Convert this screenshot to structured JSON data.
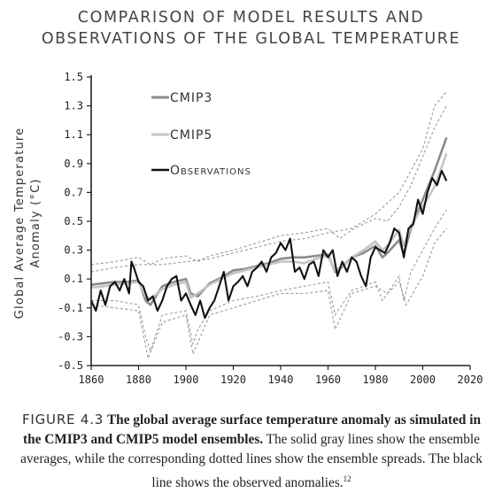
{
  "title_line1": "COMPARISON OF MODEL RESULTS AND",
  "title_line2": "OBSERVATIONS OF THE GLOBAL TEMPERATURE",
  "caption": {
    "figure_label": "FIGURE 4.3",
    "bold_text": "The global average surface temperature anomaly as simulated in the CMIP3 and CMIP5 model ensembles.",
    "text": "The solid gray lines show the ensemble averages, while the corresponding dotted lines show the ensemble spreads. The black line shows the observed anomalies.",
    "footnote": "12"
  },
  "colors": {
    "cmip3": "#8c8c8c",
    "cmip5": "#c4c4c4",
    "observations": "#111111",
    "spread": "#9a9a9a"
  },
  "chart_data": {
    "type": "line",
    "title": "COMPARISON OF MODEL RESULTS AND OBSERVATIONS OF THE GLOBAL TEMPERATURE",
    "ylabel_line1": "Global Average Temperature",
    "ylabel_line2": "Anomaly (°C)",
    "xlabel": "",
    "xlim": [
      1860,
      2020
    ],
    "ylim": [
      -0.5,
      1.5
    ],
    "x_ticks": [
      1860,
      1880,
      1900,
      1920,
      1940,
      1960,
      1980,
      2000,
      2020
    ],
    "y_ticks": [
      -0.5,
      -0.3,
      -0.1,
      0.1,
      0.3,
      0.5,
      0.7,
      0.9,
      1.1,
      1.3,
      1.5
    ],
    "y_tick_labels": [
      "-0.5",
      "-0.3",
      "-0.1",
      "0.1",
      "0.3",
      "0.5",
      "0.7",
      "0.9",
      "1.1",
      "1.3",
      "1.5"
    ],
    "legend_position": "top-left",
    "grid": false,
    "series": [
      {
        "name": "CMIP3",
        "style": "solid",
        "x": [
          1860,
          1865,
          1870,
          1875,
          1880,
          1883,
          1885,
          1890,
          1895,
          1900,
          1902,
          1905,
          1910,
          1915,
          1920,
          1925,
          1930,
          1935,
          1940,
          1945,
          1950,
          1955,
          1960,
          1963,
          1965,
          1970,
          1975,
          1980,
          1983,
          1985,
          1990,
          1992,
          1995,
          2000,
          2005,
          2010
        ],
        "y": [
          0.06,
          0.07,
          0.08,
          0.08,
          0.09,
          -0.05,
          -0.08,
          0.05,
          0.08,
          0.1,
          0.0,
          -0.02,
          0.07,
          0.11,
          0.16,
          0.17,
          0.19,
          0.21,
          0.24,
          0.25,
          0.25,
          0.26,
          0.27,
          0.15,
          0.17,
          0.25,
          0.28,
          0.33,
          0.25,
          0.28,
          0.37,
          0.27,
          0.45,
          0.65,
          0.85,
          1.08
        ]
      },
      {
        "name": "CMIP5",
        "style": "solid",
        "x": [
          1860,
          1865,
          1870,
          1875,
          1880,
          1883,
          1885,
          1890,
          1895,
          1900,
          1902,
          1905,
          1910,
          1915,
          1920,
          1925,
          1930,
          1935,
          1940,
          1945,
          1950,
          1955,
          1960,
          1963,
          1965,
          1970,
          1975,
          1980,
          1983,
          1985,
          1990,
          1992,
          1995,
          2000,
          2005,
          2010
        ],
        "y": [
          0.04,
          0.05,
          0.06,
          0.07,
          0.08,
          -0.02,
          -0.04,
          0.03,
          0.06,
          0.08,
          -0.03,
          0.0,
          0.06,
          0.1,
          0.14,
          0.16,
          0.18,
          0.2,
          0.22,
          0.22,
          0.21,
          0.24,
          0.26,
          0.16,
          0.18,
          0.25,
          0.3,
          0.36,
          0.3,
          0.33,
          0.44,
          0.33,
          0.47,
          0.6,
          0.74,
          0.97
        ]
      },
      {
        "name": "Observations",
        "style": "solid",
        "x": [
          1860,
          1862,
          1864,
          1866,
          1868,
          1870,
          1872,
          1874,
          1876,
          1877,
          1878,
          1880,
          1882,
          1884,
          1886,
          1888,
          1890,
          1892,
          1894,
          1896,
          1898,
          1900,
          1902,
          1904,
          1906,
          1908,
          1910,
          1912,
          1914,
          1916,
          1918,
          1920,
          1922,
          1924,
          1926,
          1928,
          1930,
          1932,
          1934,
          1936,
          1938,
          1940,
          1942,
          1944,
          1946,
          1948,
          1950,
          1952,
          1954,
          1956,
          1958,
          1960,
          1962,
          1964,
          1966,
          1968,
          1970,
          1972,
          1974,
          1976,
          1978,
          1980,
          1982,
          1984,
          1986,
          1988,
          1990,
          1992,
          1994,
          1996,
          1998,
          2000,
          2002,
          2004,
          2006,
          2008,
          2010
        ],
        "y": [
          -0.05,
          -0.12,
          0.02,
          -0.08,
          0.05,
          0.08,
          0.02,
          0.1,
          0.0,
          0.22,
          0.18,
          0.08,
          0.05,
          -0.05,
          -0.02,
          -0.12,
          -0.05,
          0.05,
          0.1,
          0.12,
          -0.05,
          0.0,
          -0.08,
          -0.15,
          -0.05,
          -0.17,
          -0.1,
          -0.05,
          0.05,
          0.15,
          -0.05,
          0.05,
          0.08,
          0.12,
          0.05,
          0.15,
          0.18,
          0.22,
          0.15,
          0.25,
          0.28,
          0.35,
          0.3,
          0.38,
          0.15,
          0.18,
          0.1,
          0.2,
          0.22,
          0.12,
          0.3,
          0.25,
          0.3,
          0.12,
          0.22,
          0.15,
          0.25,
          0.22,
          0.12,
          0.05,
          0.25,
          0.32,
          0.3,
          0.28,
          0.35,
          0.45,
          0.42,
          0.25,
          0.45,
          0.48,
          0.65,
          0.55,
          0.7,
          0.8,
          0.75,
          0.85,
          0.78
        ]
      },
      {
        "name": "CMIP3 spread (upper)",
        "style": "dotted",
        "x": [
          1860,
          1870,
          1880,
          1885,
          1890,
          1900,
          1905,
          1910,
          1920,
          1930,
          1940,
          1950,
          1960,
          1965,
          1970,
          1980,
          1985,
          1990,
          1995,
          2000,
          2005,
          2010
        ],
        "y": [
          0.2,
          0.22,
          0.25,
          0.2,
          0.24,
          0.26,
          0.22,
          0.26,
          0.3,
          0.35,
          0.4,
          0.42,
          0.45,
          0.38,
          0.44,
          0.52,
          0.5,
          0.6,
          0.75,
          0.95,
          1.15,
          1.3
        ]
      },
      {
        "name": "CMIP3 spread (lower)",
        "style": "dotted",
        "x": [
          1860,
          1870,
          1880,
          1883,
          1885,
          1890,
          1900,
          1903,
          1905,
          1910,
          1920,
          1930,
          1940,
          1950,
          1960,
          1963,
          1965,
          1970,
          1980,
          1983,
          1990,
          1992,
          1995,
          2000,
          2005,
          2010
        ],
        "y": [
          -0.05,
          -0.05,
          -0.08,
          -0.3,
          -0.4,
          -0.15,
          -0.12,
          -0.35,
          -0.25,
          -0.12,
          -0.05,
          -0.02,
          0.02,
          0.05,
          0.08,
          -0.15,
          -0.1,
          0.02,
          0.08,
          -0.05,
          0.12,
          -0.05,
          0.15,
          0.3,
          0.45,
          0.58
        ]
      },
      {
        "name": "CMIP5 spread (upper)",
        "style": "dotted",
        "x": [
          1860,
          1870,
          1880,
          1890,
          1900,
          1910,
          1920,
          1930,
          1940,
          1950,
          1960,
          1970,
          1980,
          1990,
          2000,
          2005,
          2010
        ],
        "y": [
          0.15,
          0.18,
          0.2,
          0.2,
          0.22,
          0.24,
          0.28,
          0.32,
          0.36,
          0.38,
          0.42,
          0.45,
          0.55,
          0.7,
          1.0,
          1.3,
          1.4
        ]
      },
      {
        "name": "CMIP5 spread (lower)",
        "style": "dotted",
        "x": [
          1860,
          1870,
          1880,
          1884,
          1890,
          1900,
          1903,
          1910,
          1920,
          1930,
          1940,
          1950,
          1960,
          1963,
          1970,
          1980,
          1985,
          1990,
          1993,
          2000,
          2005,
          2010
        ],
        "y": [
          -0.08,
          -0.1,
          -0.12,
          -0.45,
          -0.2,
          -0.15,
          -0.42,
          -0.15,
          -0.1,
          -0.05,
          0.0,
          0.0,
          0.02,
          -0.25,
          0.0,
          0.05,
          0.0,
          0.08,
          -0.08,
          0.12,
          0.35,
          0.45
        ]
      }
    ]
  }
}
